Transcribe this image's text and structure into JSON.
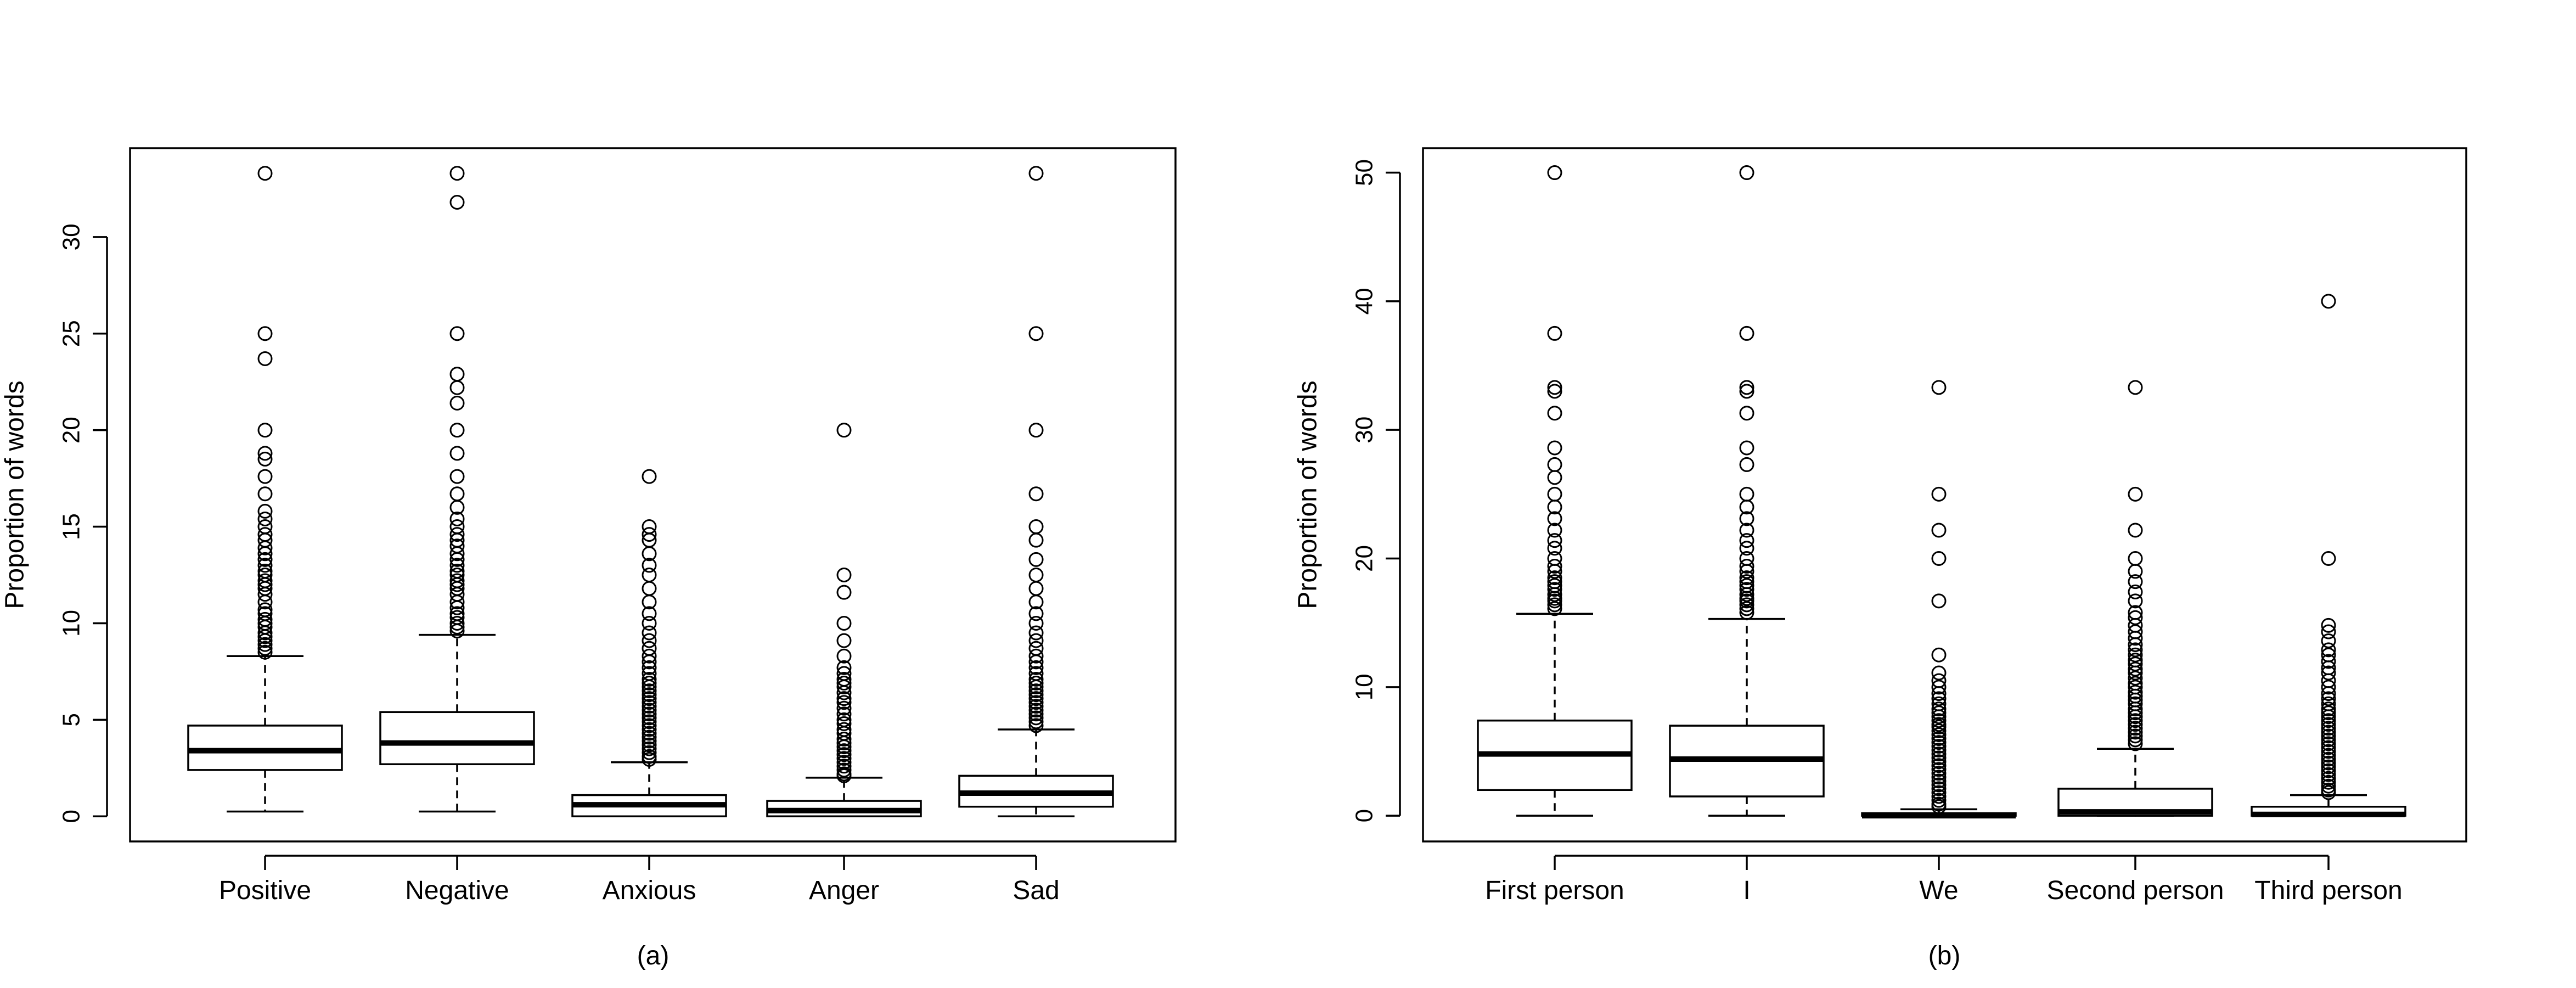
{
  "chart_data": [
    {
      "type": "box",
      "caption": "(a)",
      "ylabel": "Proportion of words",
      "ylim": [
        -1.3,
        34.6
      ],
      "yticks": [
        0,
        5,
        10,
        15,
        20,
        25,
        30
      ],
      "categories": [
        "Positive",
        "Negative",
        "Anxious",
        "Anger",
        "Sad"
      ],
      "boxes": [
        {
          "name": "Positive",
          "whisker_low": 0.25,
          "q1": 2.4,
          "median": 3.4,
          "q3": 4.7,
          "whisker_high": 8.3,
          "outliers": [
            33.3,
            25.0,
            23.7,
            20.0,
            18.8,
            18.5,
            17.6,
            16.7,
            15.8,
            15.4,
            15.0,
            14.6,
            14.3,
            13.9,
            13.6,
            13.3,
            13.0,
            12.7,
            12.5,
            12.2,
            12.0,
            11.8,
            11.5,
            11.1,
            10.7,
            10.5,
            10.2,
            10.0,
            9.8,
            9.5,
            9.3,
            9.1,
            8.9,
            8.7,
            8.5
          ]
        },
        {
          "name": "Negative",
          "whisker_low": 0.25,
          "q1": 2.7,
          "median": 3.8,
          "q3": 5.4,
          "whisker_high": 9.4,
          "outliers": [
            33.3,
            31.8,
            25.0,
            22.9,
            22.2,
            21.4,
            20.0,
            18.8,
            17.6,
            16.7,
            16.0,
            15.4,
            15.0,
            14.6,
            14.3,
            14.0,
            13.6,
            13.3,
            13.0,
            12.7,
            12.5,
            12.2,
            12.0,
            11.8,
            11.5,
            11.1,
            10.8,
            10.5,
            10.3,
            10.0,
            9.8,
            9.6
          ]
        },
        {
          "name": "Anxious",
          "whisker_low": 0.0,
          "q1": 0.0,
          "median": 0.6,
          "q3": 1.1,
          "whisker_high": 2.8,
          "outliers": [
            17.6,
            15.0,
            14.6,
            14.3,
            13.6,
            13.0,
            12.5,
            11.8,
            11.1,
            10.5,
            10.0,
            9.5,
            9.1,
            8.7,
            8.3,
            8.0,
            7.7,
            7.4,
            7.1,
            6.9,
            6.7,
            6.5,
            6.3,
            6.1,
            5.9,
            5.7,
            5.5,
            5.3,
            5.1,
            4.9,
            4.7,
            4.5,
            4.3,
            4.1,
            3.9,
            3.7,
            3.5,
            3.3,
            3.1,
            2.95
          ]
        },
        {
          "name": "Anger",
          "whisker_low": 0.0,
          "q1": 0.0,
          "median": 0.3,
          "q3": 0.8,
          "whisker_high": 2.0,
          "outliers": [
            20.0,
            12.5,
            11.6,
            10.0,
            9.1,
            8.3,
            7.7,
            7.4,
            7.1,
            6.9,
            6.7,
            6.4,
            6.1,
            5.9,
            5.6,
            5.3,
            5.0,
            4.8,
            4.5,
            4.3,
            4.0,
            3.8,
            3.6,
            3.4,
            3.2,
            3.0,
            2.8,
            2.6,
            2.4,
            2.2,
            2.1
          ]
        },
        {
          "name": "Sad",
          "whisker_low": 0.0,
          "q1": 0.5,
          "median": 1.2,
          "q3": 2.1,
          "whisker_high": 4.5,
          "outliers": [
            33.3,
            25.0,
            20.0,
            16.7,
            15.0,
            14.3,
            13.3,
            12.5,
            11.8,
            11.1,
            10.5,
            10.0,
            9.5,
            9.1,
            8.7,
            8.3,
            8.0,
            7.7,
            7.4,
            7.1,
            6.9,
            6.7,
            6.5,
            6.3,
            6.1,
            5.9,
            5.7,
            5.5,
            5.3,
            5.1,
            4.9,
            4.7
          ]
        }
      ]
    },
    {
      "type": "box",
      "caption": "(b)",
      "ylabel": "Proportion of words",
      "ylim": [
        -2.0,
        51.9
      ],
      "yticks": [
        0,
        10,
        20,
        30,
        40,
        50
      ],
      "categories": [
        "First person",
        "I",
        "We",
        "Second person",
        "Third person"
      ],
      "boxes": [
        {
          "name": "First person",
          "whisker_low": 0.0,
          "q1": 2.0,
          "median": 4.8,
          "q3": 7.4,
          "whisker_high": 15.7,
          "outliers": [
            50.0,
            37.5,
            33.3,
            33.0,
            31.3,
            28.6,
            27.3,
            26.3,
            25.0,
            24.0,
            23.1,
            22.2,
            21.4,
            20.8,
            20.0,
            19.4,
            19.0,
            18.5,
            18.2,
            17.9,
            17.6,
            17.2,
            16.9,
            16.7,
            16.4,
            16.1
          ]
        },
        {
          "name": "I",
          "whisker_low": 0.0,
          "q1": 1.5,
          "median": 4.4,
          "q3": 7.0,
          "whisker_high": 15.3,
          "outliers": [
            50.0,
            37.5,
            33.3,
            33.0,
            31.3,
            28.6,
            27.3,
            25.0,
            24.0,
            23.1,
            22.2,
            21.4,
            20.8,
            20.0,
            19.4,
            19.0,
            18.5,
            18.2,
            17.9,
            17.6,
            17.2,
            16.9,
            16.7,
            16.4,
            16.1,
            15.8
          ]
        },
        {
          "name": "We",
          "whisker_low": 0.0,
          "q1": 0.0,
          "median": 0.0,
          "q3": 0.2,
          "whisker_high": 0.5,
          "outliers": [
            33.3,
            25.0,
            22.2,
            20.0,
            16.7,
            12.5,
            11.1,
            10.5,
            10.0,
            9.5,
            9.1,
            8.7,
            8.3,
            8.0,
            7.7,
            7.4,
            7.1,
            6.9,
            6.6,
            6.3,
            6.0,
            5.7,
            5.4,
            5.1,
            4.8,
            4.5,
            4.2,
            3.9,
            3.6,
            3.3,
            3.0,
            2.7,
            2.4,
            2.1,
            1.8,
            1.5,
            1.2,
            0.9,
            0.7
          ]
        },
        {
          "name": "Second person",
          "whisker_low": 0.0,
          "q1": 0.0,
          "median": 0.3,
          "q3": 2.1,
          "whisker_high": 5.2,
          "outliers": [
            33.3,
            25.0,
            22.2,
            20.0,
            19.0,
            18.2,
            17.4,
            16.7,
            15.8,
            15.4,
            14.8,
            14.3,
            13.8,
            13.3,
            12.9,
            12.5,
            12.1,
            11.8,
            11.4,
            11.1,
            10.7,
            10.3,
            10.0,
            9.6,
            9.3,
            9.0,
            8.7,
            8.3,
            8.0,
            7.7,
            7.4,
            7.1,
            6.8,
            6.5,
            6.2,
            5.9,
            5.6
          ]
        },
        {
          "name": "Third person",
          "whisker_low": 0.0,
          "q1": 0.0,
          "median": 0.1,
          "q3": 0.7,
          "whisker_high": 1.6,
          "outliers": [
            40.0,
            20.0,
            14.8,
            14.3,
            13.6,
            12.9,
            12.5,
            12.0,
            11.5,
            11.1,
            10.5,
            10.0,
            9.5,
            9.1,
            8.7,
            8.3,
            8.0,
            7.7,
            7.4,
            7.1,
            6.8,
            6.5,
            6.2,
            5.9,
            5.6,
            5.3,
            5.0,
            4.7,
            4.4,
            4.1,
            3.8,
            3.5,
            3.2,
            2.9,
            2.6,
            2.3,
            2.0,
            1.8
          ]
        }
      ]
    }
  ]
}
